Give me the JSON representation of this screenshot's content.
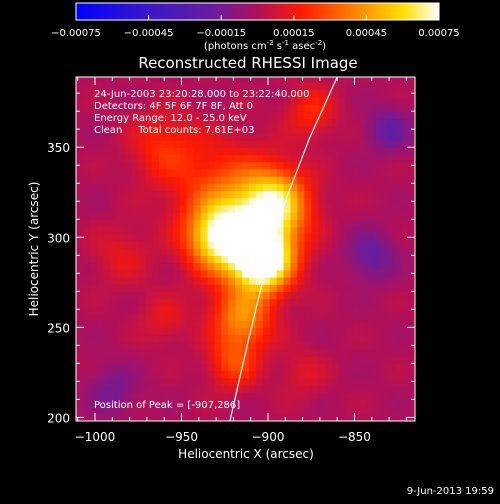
{
  "colorbar": {
    "tick_labels": [
      "-0.00075",
      "-0.00045",
      "-0.00015",
      "0.00015",
      "0.00045",
      "0.00075"
    ],
    "units_main": "(photons cm",
    "units_exp1": "-2",
    "units_mid": " s",
    "units_exp2": "-1",
    "units_end": " asec",
    "units_exp3": "-2",
    "units_close": ")"
  },
  "chart_data": {
    "type": "heatmap",
    "title": "Reconstructed RHESSI Image",
    "xlabel": "Heliocentric X (arcsec)",
    "ylabel": "Heliocentric Y (arcsec)",
    "x_ticks": [
      -1000,
      -950,
      -900,
      -850
    ],
    "x_tick_labels": [
      "−1000",
      "−950",
      "−900",
      "−850"
    ],
    "y_ticks": [
      200,
      250,
      300,
      350
    ],
    "y_tick_labels": [
      "200",
      "250",
      "300",
      "350"
    ],
    "xlim": [
      -1011,
      -815
    ],
    "ylim": [
      198,
      389
    ],
    "value_range": [
      -0.00075,
      0.00075
    ],
    "colormap": "rainbow (blue-purple-red-orange-yellow-white)",
    "peak_position": [
      -907,
      286
    ],
    "info_lines": [
      "24-Jun-2003 23:20:28.000 to 23:22:40.000",
      "Detectors: 4F 5F 6F 7F 8F, Att 0",
      "Energy Range: 12.0 - 25.0 keV",
      "Clean     Total counts: 7.61E+03"
    ],
    "peak_label": "Position of Peak = [-907,286]",
    "limb_curve": [
      [
        -922,
        198
      ],
      [
        -912,
        240
      ],
      [
        -902,
        280
      ],
      [
        -890,
        320
      ],
      [
        -876,
        355
      ],
      [
        -860,
        389
      ]
    ],
    "emission_sources": [
      {
        "x": -903,
        "y": 287,
        "amp": 0.00075,
        "sigma": 11
      },
      {
        "x": -910,
        "y": 300,
        "amp": 0.0005,
        "sigma": 18
      },
      {
        "x": -930,
        "y": 300,
        "amp": 0.00045,
        "sigma": 12
      },
      {
        "x": -895,
        "y": 320,
        "amp": 0.0005,
        "sigma": 13
      },
      {
        "x": -925,
        "y": 325,
        "amp": 0.00025,
        "sigma": 20
      },
      {
        "x": -960,
        "y": 350,
        "amp": 0.0002,
        "sigma": 14
      },
      {
        "x": -915,
        "y": 255,
        "amp": 0.0004,
        "sigma": 12
      },
      {
        "x": -920,
        "y": 230,
        "amp": 0.00025,
        "sigma": 10
      },
      {
        "x": -875,
        "y": 370,
        "amp": 0.0002,
        "sigma": 10
      },
      {
        "x": -985,
        "y": 290,
        "amp": 0.00012,
        "sigma": 12
      },
      {
        "x": -960,
        "y": 255,
        "amp": 0.00012,
        "sigma": 10
      },
      {
        "x": -880,
        "y": 225,
        "amp": 0.0001,
        "sigma": 10
      },
      {
        "x": -840,
        "y": 290,
        "amp": -0.0002,
        "sigma": 10
      },
      {
        "x": -830,
        "y": 360,
        "amp": -0.0002,
        "sigma": 9
      },
      {
        "x": -990,
        "y": 215,
        "amp": -0.00015,
        "sigma": 10
      }
    ]
  },
  "footer": {
    "date": "9-Jun-2013 19:59"
  }
}
